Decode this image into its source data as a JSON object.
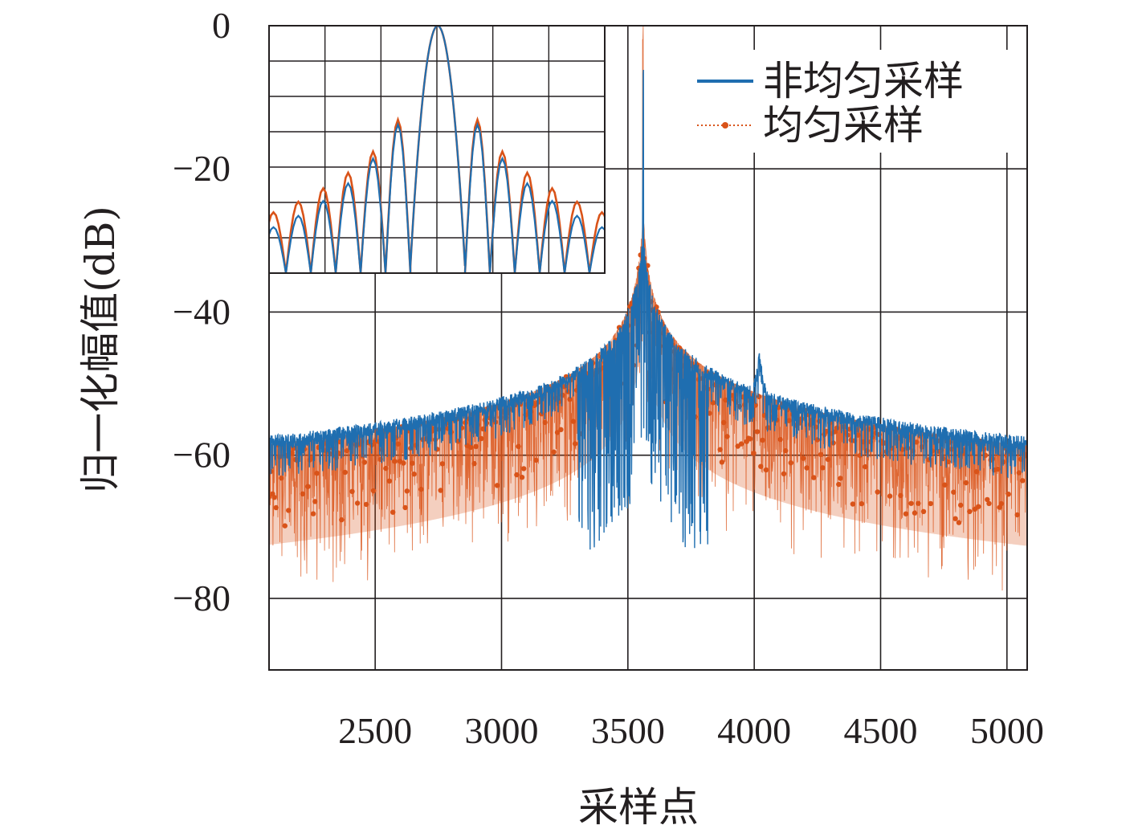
{
  "chart_data": {
    "type": "line",
    "xlabel": "采样点",
    "ylabel": "归一化幅值(dB)",
    "xlim": [
      2080,
      5080
    ],
    "ylim": [
      -90,
      0
    ],
    "x_ticks": [
      2500,
      3000,
      3500,
      4000,
      4500,
      5000
    ],
    "x_tick_labels": [
      "2500",
      "3000",
      "3500",
      "4000",
      "4500",
      "5000"
    ],
    "y_ticks": [
      0,
      -20,
      -40,
      -60,
      -80
    ],
    "y_tick_labels": [
      "0",
      "−20",
      "−40",
      "−60",
      "−80"
    ],
    "grid": true,
    "legend": "top-right",
    "series": [
      {
        "name": "非均匀采样",
        "color": "#1f6eb0",
        "style": "solid",
        "peaks": [
          {
            "x": 3560,
            "y": 0
          },
          {
            "x": 4020,
            "y": -45
          }
        ],
        "floor_left": -72,
        "floor_right": -68
      },
      {
        "name": "均匀采样",
        "color": "#d95319",
        "style": "dotted-markers",
        "peaks": [
          {
            "x": 3560,
            "y": 0
          }
        ],
        "floor_edges": -78
      }
    ],
    "inset": {
      "description": "zoom of main lobe",
      "peak_db": 0,
      "sidelobe_db_uniform": [
        -13.3,
        -17.8,
        -20.8,
        -23.0,
        -24.9,
        -26.4,
        -27.7
      ],
      "sidelobe_db_nonuniform": [
        -14.0,
        -18.8,
        -22.3,
        -24.8,
        -26.9,
        -28.5,
        -29.9
      ]
    }
  }
}
